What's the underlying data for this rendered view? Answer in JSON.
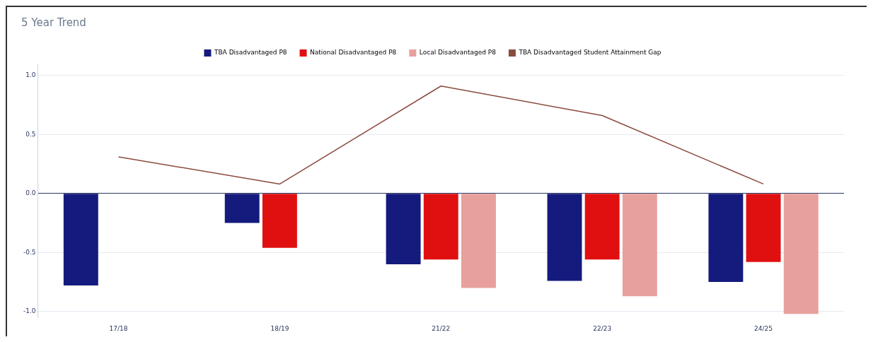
{
  "chart_data": {
    "type": "bar",
    "title": "5 Year Trend",
    "categories": [
      "17/18",
      "18/19",
      "21/22",
      "22/23",
      "24/25"
    ],
    "series": [
      {
        "name": "TBA Disadvantaged P8",
        "color": "#141b7c",
        "values": [
          -0.78,
          -0.25,
          -0.6,
          -0.74,
          -0.75
        ]
      },
      {
        "name": "National Disadvantaged P8",
        "color": "#e01010",
        "values": [
          null,
          -0.46,
          -0.56,
          -0.56,
          -0.58
        ]
      },
      {
        "name": "Local Disadvantaged P8",
        "color": "#e8a09c",
        "values": [
          null,
          null,
          -0.8,
          -0.87,
          -1.02
        ]
      },
      {
        "name": "TBA Disadvantaged Student Attainment Gap",
        "type": "line",
        "color": "#8b4a3f",
        "values": [
          0.31,
          0.08,
          0.91,
          0.66,
          0.08
        ]
      }
    ],
    "ylim": [
      -1.05,
      1.1
    ],
    "yticks": [
      {
        "value": -1,
        "label": "-1.0"
      },
      {
        "value": -0.5,
        "label": "-0.5"
      },
      {
        "value": 0,
        "label": "0.0"
      },
      {
        "value": 0.5,
        "label": "0.5"
      },
      {
        "value": 1,
        "label": "1.0"
      }
    ],
    "grid": "y",
    "legend": "top",
    "marker": "none"
  }
}
